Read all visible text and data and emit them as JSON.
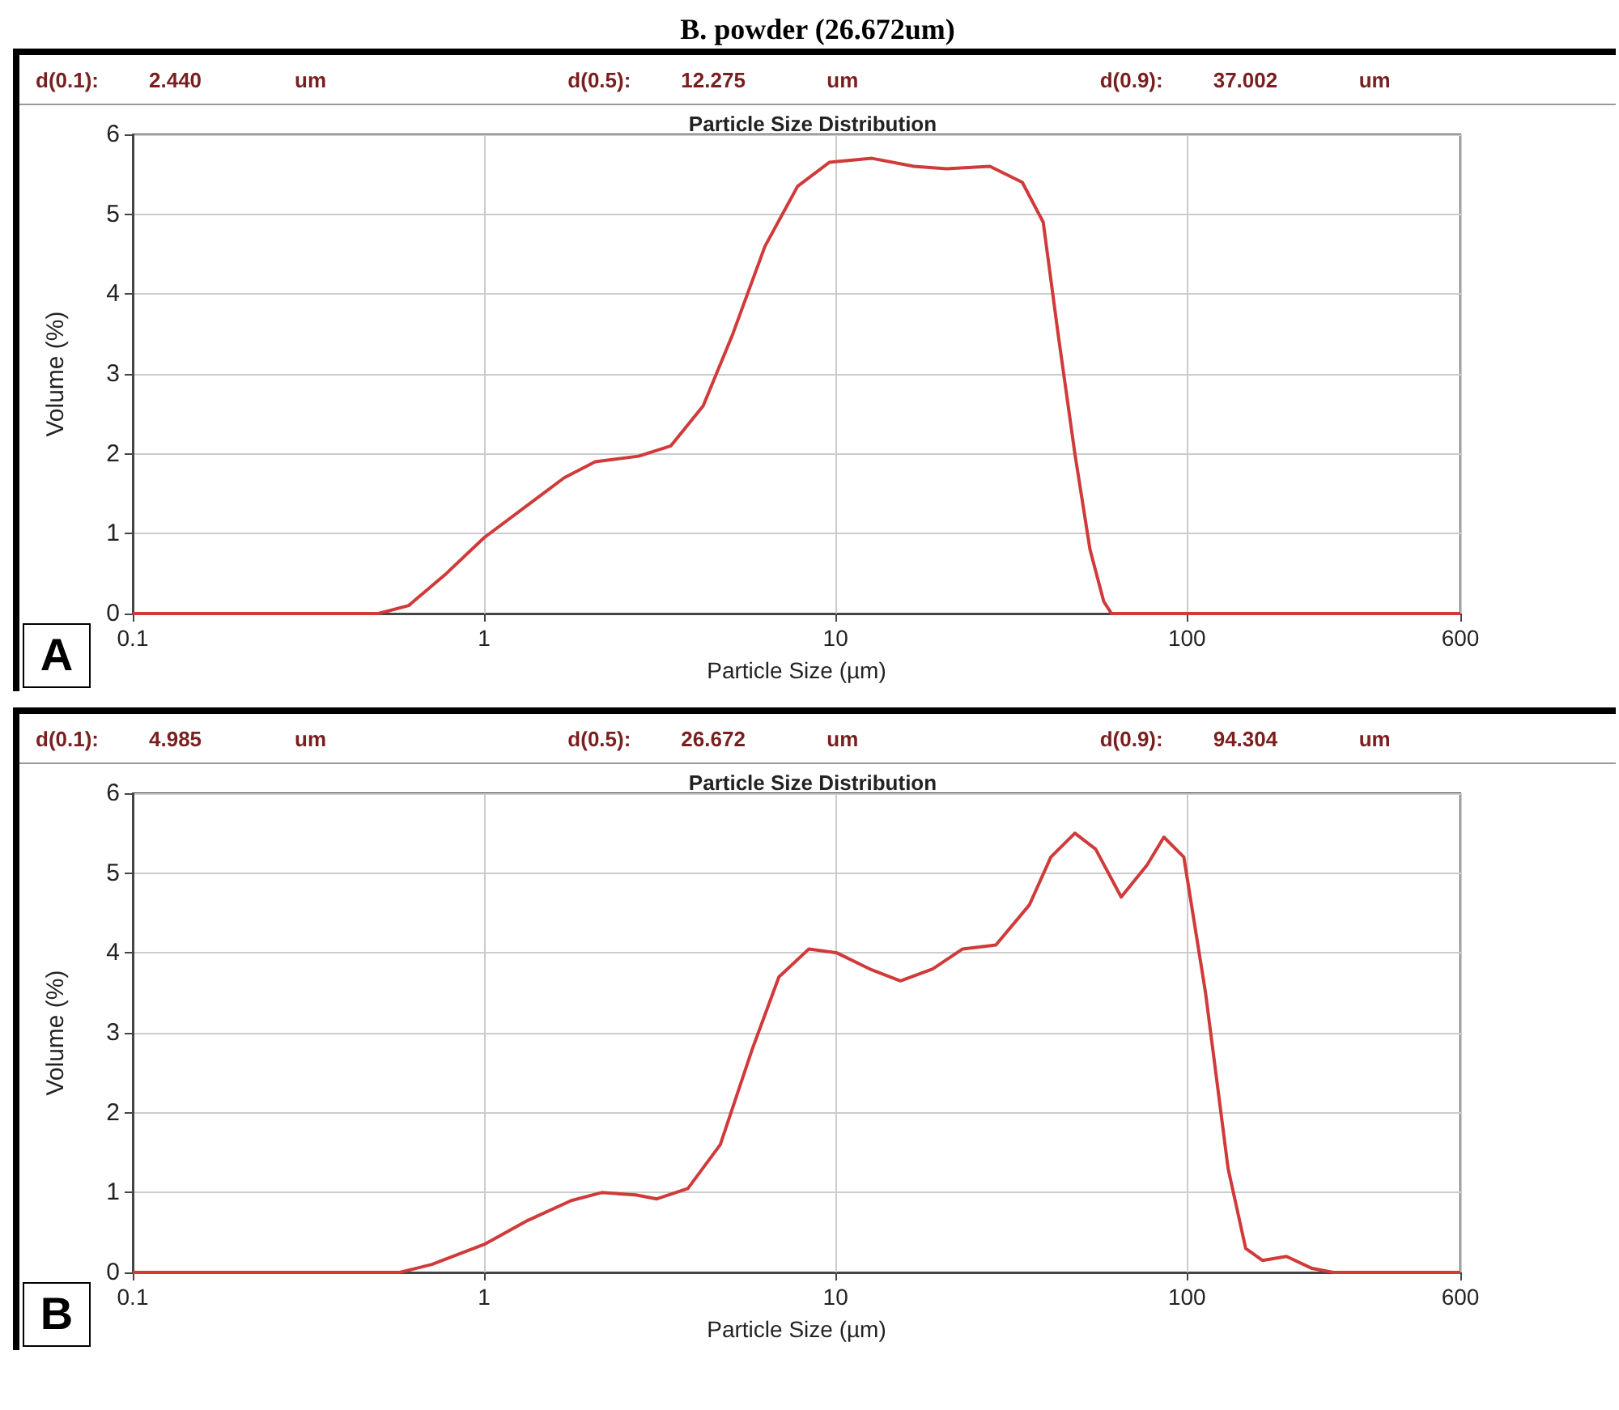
{
  "chart_data": [
    {
      "type": "line",
      "title": "Particle Size Distribution",
      "xlabel": "Particle Size (µm)",
      "ylabel": "Volume (%)",
      "log": "x",
      "grid": true,
      "marker": "none",
      "line_style": "solid",
      "xlim": [
        0.1,
        600
      ],
      "xticks": [
        0.1,
        1,
        10,
        100,
        600
      ],
      "ylim": [
        0,
        6
      ],
      "yticks": [
        0,
        1,
        2,
        3,
        4,
        5,
        6
      ],
      "annotations": [
        "d(0.1):",
        "2.440",
        "um",
        "d(0.5):",
        "12.275",
        "um",
        "d(0.9):",
        "37.002",
        "um",
        "A",
        "B. powder (26.672um)"
      ],
      "series": [
        {
          "color": "#d03a3a",
          "x": [
            0.1,
            0.5,
            0.61,
            0.78,
            1,
            1.37,
            1.69,
            2.07,
            2.75,
            3.4,
            4.2,
            5.1,
            6.3,
            7.8,
            9.6,
            12.7,
            16.7,
            20.7,
            27.5,
            34,
            39,
            43,
            48,
            53,
            58,
            61,
            600
          ],
          "values": [
            0,
            0,
            0.1,
            0.5,
            0.95,
            1.4,
            1.7,
            1.9,
            1.97,
            2.1,
            2.6,
            3.5,
            4.6,
            5.35,
            5.65,
            5.7,
            5.6,
            5.57,
            5.6,
            5.4,
            4.9,
            3.5,
            2.0,
            0.8,
            0.15,
            0,
            0
          ]
        }
      ]
    },
    {
      "type": "line",
      "title": "Particle Size Distribution",
      "xlabel": "Particle Size (µm)",
      "ylabel": "Volume (%)",
      "log": "x",
      "grid": true,
      "marker": "none",
      "line_style": "solid",
      "xlim": [
        0.1,
        600
      ],
      "xticks": [
        0.1,
        1,
        10,
        100,
        600
      ],
      "ylim": [
        0,
        6
      ],
      "yticks": [
        0,
        1,
        2,
        3,
        4,
        5,
        6
      ],
      "annotations": [
        "d(0.1):",
        "4.985",
        "um",
        "d(0.5):",
        "26.672",
        "um",
        "d(0.9):",
        "94.304",
        "um",
        "B"
      ],
      "series": [
        {
          "color": "#d03a3a",
          "x": [
            0.1,
            0.575,
            0.71,
            1,
            1.33,
            1.77,
            2.16,
            2.7,
            3.1,
            3.8,
            4.7,
            5.8,
            6.9,
            8.4,
            10.1,
            12.5,
            15.3,
            18.9,
            23,
            28.6,
            35.6,
            41,
            48,
            55,
            65,
            77,
            86,
            98,
            113,
            131,
            147,
            164,
            192,
            227,
            261,
            600
          ],
          "values": [
            0,
            0,
            0.1,
            0.35,
            0.65,
            0.9,
            1.0,
            0.97,
            0.92,
            1.05,
            1.6,
            2.8,
            3.7,
            4.05,
            4.0,
            3.8,
            3.65,
            3.8,
            4.05,
            4.1,
            4.6,
            5.2,
            5.5,
            5.3,
            4.7,
            5.1,
            5.45,
            5.2,
            3.5,
            1.3,
            0.3,
            0.15,
            0.2,
            0.05,
            0,
            0
          ]
        }
      ]
    }
  ]
}
